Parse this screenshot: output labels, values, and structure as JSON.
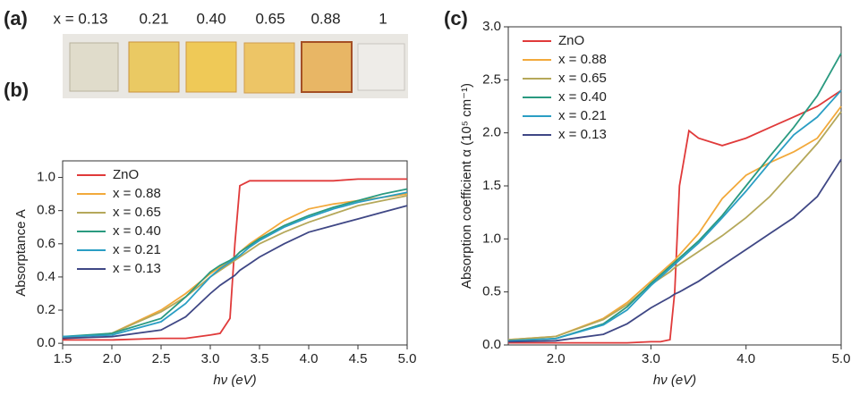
{
  "panel_a": {
    "label": "(a)",
    "samples": [
      "x = 0.13",
      "0.21",
      "0.40",
      "0.65",
      "0.88",
      "1"
    ]
  },
  "chart_data": [
    {
      "type": "line",
      "label": "(b)",
      "xlabel": "hν (eV)",
      "ylabel": "Absorptance A",
      "xlim": [
        1.5,
        5.0
      ],
      "ylim": [
        -0.01,
        1.1
      ],
      "xticks": [
        1.5,
        {
          "value": 2,
          "label": "2.0"
        },
        2.5,
        {
          "value": 3,
          "label": "3.0"
        },
        3.5,
        {
          "value": 4,
          "label": "4.0"
        },
        4.5,
        {
          "value": 5,
          "label": "5.0"
        }
      ],
      "yticks": [
        {
          "value": 0,
          "label": "0.0"
        },
        0.2,
        0.4,
        0.6,
        0.8,
        {
          "value": 1,
          "label": "1.0"
        }
      ],
      "legend": "upper left",
      "x": [
        1.5,
        2.0,
        2.5,
        2.75,
        3.0,
        3.1,
        3.2,
        3.25,
        3.3,
        3.4,
        3.5,
        3.75,
        4.0,
        4.25,
        4.5,
        4.75,
        5.0
      ],
      "series": [
        {
          "name": "ZnO",
          "color": "#e03a3a",
          "values": [
            0.02,
            0.02,
            0.03,
            0.03,
            0.05,
            0.06,
            0.15,
            0.6,
            0.95,
            0.98,
            0.98,
            0.98,
            0.98,
            0.98,
            0.99,
            0.99,
            0.99
          ]
        },
        {
          "name": "x = 0.88",
          "color": "#f2a93b",
          "values": [
            0.03,
            0.06,
            0.2,
            0.3,
            0.42,
            0.46,
            0.5,
            0.52,
            0.55,
            0.6,
            0.64,
            0.74,
            0.81,
            0.84,
            0.86,
            0.88,
            0.9
          ]
        },
        {
          "name": "x = 0.65",
          "color": "#b5a85a",
          "values": [
            0.03,
            0.06,
            0.19,
            0.28,
            0.4,
            0.44,
            0.48,
            0.5,
            0.52,
            0.56,
            0.6,
            0.67,
            0.73,
            0.78,
            0.83,
            0.86,
            0.89
          ]
        },
        {
          "name": "x = 0.40",
          "color": "#2a9a80",
          "values": [
            0.04,
            0.06,
            0.15,
            0.28,
            0.43,
            0.47,
            0.5,
            0.52,
            0.55,
            0.59,
            0.63,
            0.71,
            0.77,
            0.82,
            0.86,
            0.9,
            0.93
          ]
        },
        {
          "name": "x = 0.21",
          "color": "#2a9ec4",
          "values": [
            0.04,
            0.05,
            0.13,
            0.24,
            0.4,
            0.45,
            0.49,
            0.51,
            0.53,
            0.58,
            0.62,
            0.7,
            0.76,
            0.81,
            0.85,
            0.88,
            0.91
          ]
        },
        {
          "name": "x = 0.13",
          "color": "#3f4785",
          "values": [
            0.03,
            0.04,
            0.08,
            0.16,
            0.3,
            0.35,
            0.39,
            0.41,
            0.44,
            0.48,
            0.52,
            0.6,
            0.67,
            0.71,
            0.75,
            0.79,
            0.83
          ]
        }
      ]
    },
    {
      "type": "line",
      "label": "(c)",
      "xlabel": "hν (eV)",
      "ylabel": "Absorption coefficient α (10⁵ cm⁻¹)",
      "xlim": [
        1.5,
        5.0
      ],
      "ylim": [
        0,
        3.0
      ],
      "xticks": [
        {
          "value": 2,
          "label": "2.0"
        },
        {
          "value": 3,
          "label": "3.0"
        },
        {
          "value": 4,
          "label": "4.0"
        },
        {
          "value": 5,
          "label": "5.0"
        }
      ],
      "yticks": [
        {
          "value": 0,
          "label": "0.0"
        },
        0.5,
        {
          "value": 1,
          "label": "1.0"
        },
        1.5,
        {
          "value": 2,
          "label": "2.0"
        },
        2.5,
        {
          "value": 3,
          "label": "3.0"
        }
      ],
      "legend": "upper left",
      "x": [
        1.5,
        2.0,
        2.5,
        2.75,
        3.0,
        3.1,
        3.2,
        3.25,
        3.3,
        3.4,
        3.5,
        3.75,
        4.0,
        4.25,
        4.5,
        4.75,
        5.0
      ],
      "series": [
        {
          "name": "ZnO",
          "color": "#e03a3a",
          "values": [
            0.02,
            0.02,
            0.02,
            0.02,
            0.03,
            0.03,
            0.05,
            0.5,
            1.5,
            2.02,
            1.95,
            1.88,
            1.95,
            2.05,
            2.15,
            2.25,
            2.4
          ]
        },
        {
          "name": "x = 0.88",
          "color": "#f2a93b",
          "values": [
            0.05,
            0.08,
            0.25,
            0.4,
            0.6,
            0.68,
            0.76,
            0.8,
            0.85,
            0.95,
            1.05,
            1.38,
            1.6,
            1.72,
            1.82,
            1.95,
            2.25
          ]
        },
        {
          "name": "x = 0.65",
          "color": "#b5a85a",
          "values": [
            0.05,
            0.08,
            0.24,
            0.38,
            0.57,
            0.63,
            0.69,
            0.73,
            0.76,
            0.82,
            0.88,
            1.03,
            1.2,
            1.4,
            1.65,
            1.9,
            2.2
          ]
        },
        {
          "name": "x = 0.40",
          "color": "#2a9a80",
          "values": [
            0.04,
            0.06,
            0.2,
            0.36,
            0.58,
            0.66,
            0.74,
            0.78,
            0.82,
            0.9,
            0.98,
            1.22,
            1.5,
            1.78,
            2.05,
            2.35,
            2.75
          ]
        },
        {
          "name": "x = 0.21",
          "color": "#2a9ec4",
          "values": [
            0.04,
            0.06,
            0.19,
            0.33,
            0.56,
            0.64,
            0.72,
            0.76,
            0.8,
            0.88,
            0.96,
            1.2,
            1.45,
            1.72,
            1.98,
            2.15,
            2.4
          ]
        },
        {
          "name": "x = 0.13",
          "color": "#3f4785",
          "values": [
            0.03,
            0.04,
            0.1,
            0.2,
            0.35,
            0.4,
            0.45,
            0.48,
            0.5,
            0.55,
            0.6,
            0.75,
            0.9,
            1.05,
            1.2,
            1.4,
            1.75
          ]
        }
      ]
    }
  ]
}
